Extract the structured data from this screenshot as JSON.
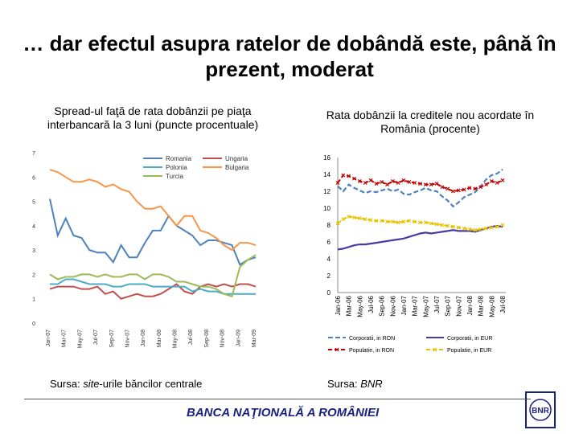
{
  "title": "… dar efectul asupra ratelor de dobândă este, până în prezent, moderat",
  "footer": {
    "left_source_prefix": "Sursa: ",
    "left_source_em": "site",
    "left_source_suffix": "-urile băncilor centrale",
    "right_source_prefix": "Sursa: ",
    "right_source_em": "BNR",
    "bank_name": "BANCA NAŢIONALĂ A ROMÂNIEI",
    "logo_monogram": "BNR"
  },
  "colors": {
    "romania": "#4f81bd",
    "ungaria": "#c0504d",
    "polonia": "#4bacc6",
    "bulgaria": "#f79646",
    "turcia": "#9bbb59",
    "corp_ron": "#4f81bd",
    "corp_eur": "#4b3aa0",
    "pop_ron": "#c00000",
    "pop_eur": "#e6c200"
  },
  "chart_data": [
    {
      "type": "line",
      "title": "Spread-ul faţă de rata dobânzii pe piaţa interbancară la 3 luni (puncte procentuale)",
      "ylim": [
        0,
        7
      ],
      "yticks": [
        "0",
        "1",
        "2",
        "3",
        "4",
        "5",
        "6",
        "7"
      ],
      "categories": [
        "Jan-07",
        "Feb-07",
        "Mar-07",
        "Apr-07",
        "May-07",
        "Jun-07",
        "Jul-07",
        "Aug-07",
        "Sep-07",
        "Oct-07",
        "Nov-07",
        "Dec-07",
        "Jan-08",
        "Feb-08",
        "Mar-08",
        "Apr-08",
        "May-08",
        "Jun-08",
        "Jul-08",
        "Aug-08",
        "Sep-08",
        "Oct-08",
        "Nov-08",
        "Dec-08",
        "Jan-09",
        "Feb-09",
        "Mar-09"
      ],
      "xtick_labels": [
        "Jan-07",
        "Mar-07",
        "May-07",
        "Jul-07",
        "Sep-07",
        "Nov-07",
        "Jan-08",
        "Mar-08",
        "May-08",
        "Jul-08",
        "Sep-08",
        "Nov-08",
        "Jan-09",
        "Mar-09"
      ],
      "legend": [
        "Romania",
        "Ungaria",
        "Polonia",
        "Bulgaria",
        "Turcia"
      ],
      "series": [
        {
          "name": "Romania",
          "values": [
            5.1,
            3.6,
            4.3,
            3.6,
            3.5,
            3.0,
            2.9,
            2.9,
            2.5,
            3.2,
            2.7,
            2.7,
            3.3,
            3.8,
            3.8,
            4.4,
            4.0,
            3.8,
            3.6,
            3.2,
            3.4,
            3.4,
            3.3,
            3.2,
            2.4,
            2.6,
            2.7
          ]
        },
        {
          "name": "Ungaria",
          "values": [
            1.4,
            1.5,
            1.5,
            1.5,
            1.4,
            1.4,
            1.5,
            1.2,
            1.3,
            1.0,
            1.1,
            1.2,
            1.1,
            1.1,
            1.2,
            1.4,
            1.6,
            1.3,
            1.2,
            1.5,
            1.6,
            1.5,
            1.6,
            1.5,
            1.6,
            1.6,
            1.5
          ]
        },
        {
          "name": "Polonia",
          "values": [
            1.6,
            1.6,
            1.8,
            1.8,
            1.7,
            1.6,
            1.6,
            1.6,
            1.5,
            1.5,
            1.6,
            1.6,
            1.6,
            1.5,
            1.5,
            1.5,
            1.5,
            1.5,
            1.3,
            1.4,
            1.3,
            1.3,
            1.2,
            1.2,
            1.2,
            1.2,
            1.2
          ]
        },
        {
          "name": "Bulgaria",
          "values": [
            6.3,
            6.2,
            6.0,
            5.8,
            5.8,
            5.9,
            5.8,
            5.6,
            5.7,
            5.5,
            5.4,
            5.0,
            4.7,
            4.7,
            4.8,
            4.4,
            4.0,
            4.4,
            4.4,
            3.8,
            3.7,
            3.5,
            3.2,
            3.0,
            3.3,
            3.3,
            3.2
          ]
        },
        {
          "name": "Turcia",
          "values": [
            2.0,
            1.8,
            1.9,
            1.9,
            2.0,
            2.0,
            1.9,
            2.0,
            1.9,
            1.9,
            2.0,
            2.0,
            1.8,
            2.0,
            2.0,
            1.9,
            1.7,
            1.7,
            1.6,
            1.5,
            1.5,
            1.4,
            1.2,
            1.1,
            2.3,
            2.6,
            2.8
          ]
        }
      ]
    },
    {
      "type": "line",
      "title": "Rata dobânzii la creditele nou acordate în România (procente)",
      "ylim": [
        0,
        16
      ],
      "yticks": [
        "0",
        "2",
        "4",
        "6",
        "8",
        "10",
        "12",
        "14",
        "16"
      ],
      "categories": [
        "Jan-06",
        "Feb-06",
        "Mar-06",
        "Apr-06",
        "May-06",
        "Jun-06",
        "Jul-06",
        "Aug-06",
        "Sep-06",
        "Oct-06",
        "Nov-06",
        "Dec-06",
        "Jan-07",
        "Feb-07",
        "Mar-07",
        "Apr-07",
        "May-07",
        "Jun-07",
        "Jul-07",
        "Aug-07",
        "Sep-07",
        "Oct-07",
        "Nov-07",
        "Dec-07",
        "Jan-08",
        "Feb-08",
        "Mar-08",
        "Apr-08",
        "May-08",
        "Jun-08",
        "Jul-08"
      ],
      "xtick_labels": [
        "Jan-06",
        "Mar-06",
        "May-06",
        "Jul-06",
        "Sep-06",
        "Nov-06",
        "Jan-07",
        "Mar-07",
        "May-07",
        "Jul-07",
        "Sep-07",
        "Nov-07",
        "Jan-08",
        "Mar-08",
        "May-08",
        "Jul-08"
      ],
      "legend": [
        "Corporatii, in RON",
        "Corporatii, in EUR",
        "Populatie, in RON",
        "Populatie, in EUR"
      ],
      "series": [
        {
          "name": "Corporatii, in RON",
          "values": [
            12.6,
            12.0,
            12.8,
            12.4,
            12.1,
            11.8,
            12.0,
            11.9,
            12.1,
            12.3,
            12.0,
            12.2,
            11.7,
            11.6,
            11.9,
            12.1,
            12.4,
            12.1,
            12.0,
            11.4,
            10.9,
            10.2,
            10.7,
            11.3,
            11.6,
            11.9,
            12.6,
            13.4,
            13.9,
            14.1,
            14.6
          ]
        },
        {
          "name": "Corporatii, in EUR",
          "values": [
            5.1,
            5.2,
            5.4,
            5.6,
            5.7,
            5.7,
            5.8,
            5.9,
            6.0,
            6.1,
            6.2,
            6.3,
            6.4,
            6.6,
            6.8,
            7.0,
            7.1,
            7.0,
            7.1,
            7.2,
            7.3,
            7.4,
            7.3,
            7.3,
            7.3,
            7.2,
            7.4,
            7.6,
            7.8,
            7.9,
            7.8
          ]
        },
        {
          "name": "Populatie, in RON",
          "values": [
            13.0,
            13.9,
            13.8,
            13.5,
            13.2,
            13.0,
            13.3,
            12.9,
            13.1,
            12.8,
            13.2,
            13.0,
            13.3,
            13.1,
            13.0,
            12.9,
            12.8,
            12.8,
            12.9,
            12.5,
            12.3,
            12.0,
            12.1,
            12.2,
            12.4,
            12.3,
            12.5,
            12.8,
            13.2,
            13.0,
            13.3
          ]
        },
        {
          "name": "Populatie, in EUR",
          "values": [
            8.2,
            8.7,
            9.0,
            8.9,
            8.8,
            8.7,
            8.6,
            8.5,
            8.5,
            8.4,
            8.4,
            8.3,
            8.4,
            8.5,
            8.4,
            8.3,
            8.3,
            8.2,
            8.1,
            8.0,
            7.9,
            7.8,
            7.7,
            7.6,
            7.5,
            7.4,
            7.5,
            7.6,
            7.7,
            7.8,
            8.0
          ]
        }
      ]
    }
  ]
}
